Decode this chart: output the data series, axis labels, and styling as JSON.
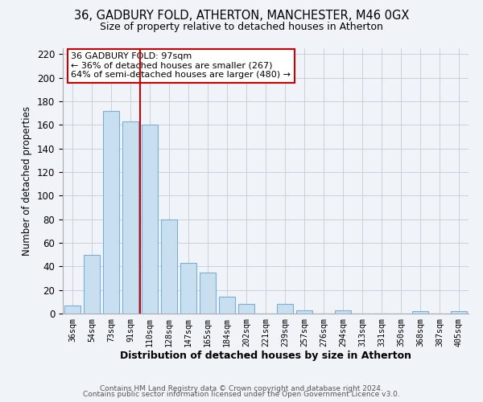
{
  "title1": "36, GADBURY FOLD, ATHERTON, MANCHESTER, M46 0GX",
  "title2": "Size of property relative to detached houses in Atherton",
  "xlabel": "Distribution of detached houses by size in Atherton",
  "ylabel": "Number of detached properties",
  "bar_labels": [
    "36sqm",
    "54sqm",
    "73sqm",
    "91sqm",
    "110sqm",
    "128sqm",
    "147sqm",
    "165sqm",
    "184sqm",
    "202sqm",
    "221sqm",
    "239sqm",
    "257sqm",
    "276sqm",
    "294sqm",
    "313sqm",
    "331sqm",
    "350sqm",
    "368sqm",
    "387sqm",
    "405sqm"
  ],
  "bar_values": [
    7,
    50,
    172,
    163,
    160,
    80,
    43,
    35,
    14,
    8,
    0,
    8,
    3,
    0,
    3,
    0,
    0,
    0,
    2,
    0,
    2
  ],
  "bar_color": "#c8dff0",
  "bar_edge_color": "#7aaed6",
  "vline_x": 3.5,
  "vline_color": "#cc0000",
  "ylim": [
    0,
    225
  ],
  "yticks": [
    0,
    20,
    40,
    60,
    80,
    100,
    120,
    140,
    160,
    180,
    200,
    220
  ],
  "annotation_title": "36 GADBURY FOLD: 97sqm",
  "annotation_line1": "← 36% of detached houses are smaller (267)",
  "annotation_line2": "64% of semi-detached houses are larger (480) →",
  "annotation_box_color": "#ffffff",
  "annotation_box_edge": "#cc0000",
  "footer1": "Contains HM Land Registry data © Crown copyright and database right 2024.",
  "footer2": "Contains public sector information licensed under the Open Government Licence v3.0.",
  "bg_color": "#f0f4f8"
}
